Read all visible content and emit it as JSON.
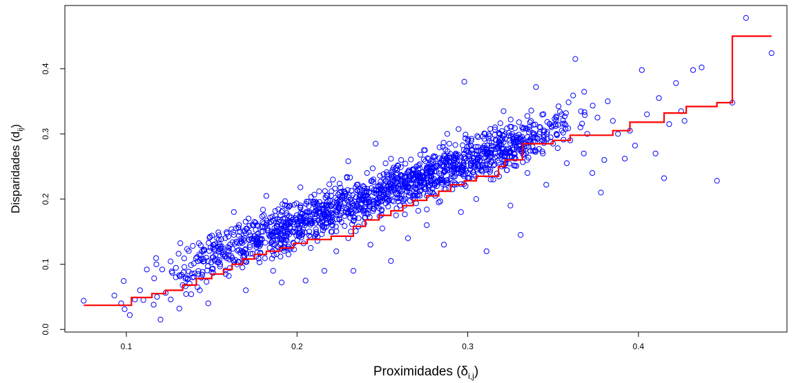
{
  "chart_data": {
    "type": "scatter",
    "title": "",
    "xlabel": {
      "main": "Proximidades (δ",
      "sub": "i,j",
      "close": ")"
    },
    "ylabel": {
      "main": "Disparidades (d",
      "sub": "ij",
      "close": ")"
    },
    "xlim": [
      0.064,
      0.487
    ],
    "ylim": [
      -0.004,
      0.497
    ],
    "xticks": [
      0.1,
      0.2,
      0.3,
      0.4
    ],
    "xtick_labels": [
      "0.1",
      "0.2",
      "0.3",
      "0.4"
    ],
    "yticks": [
      0.0,
      0.1,
      0.2,
      0.3,
      0.4
    ],
    "ytick_labels": [
      "0.0",
      "0.1",
      "0.2",
      "0.3",
      "0.4"
    ],
    "grid": false,
    "legend": "none",
    "series": [
      {
        "kind": "points",
        "marker": "open-circle",
        "color": "#0000ff",
        "sample_points": [
          [
            0.075,
            0.044
          ],
          [
            0.093,
            0.052
          ],
          [
            0.097,
            0.04
          ],
          [
            0.099,
            0.031
          ],
          [
            0.102,
            0.022
          ],
          [
            0.105,
            0.046
          ],
          [
            0.108,
            0.06
          ],
          [
            0.11,
            0.045
          ],
          [
            0.112,
            0.092
          ],
          [
            0.116,
            0.038
          ],
          [
            0.118,
            0.05
          ],
          [
            0.12,
            0.015
          ],
          [
            0.121,
            0.092
          ],
          [
            0.123,
            0.056
          ],
          [
            0.126,
            0.046
          ],
          [
            0.129,
            0.08
          ],
          [
            0.131,
            0.032
          ],
          [
            0.133,
            0.068
          ],
          [
            0.136,
            0.078
          ],
          [
            0.138,
            0.054
          ],
          [
            0.14,
            0.086
          ],
          [
            0.143,
            0.06
          ],
          [
            0.145,
            0.108
          ],
          [
            0.147,
            0.073
          ],
          [
            0.148,
            0.04
          ],
          [
            0.15,
            0.088
          ],
          [
            0.152,
            0.12
          ],
          [
            0.155,
            0.1
          ],
          [
            0.158,
            0.14
          ],
          [
            0.16,
            0.082
          ],
          [
            0.162,
            0.11
          ],
          [
            0.163,
            0.18
          ],
          [
            0.166,
            0.122
          ],
          [
            0.168,
            0.095
          ],
          [
            0.17,
            0.06
          ],
          [
            0.172,
            0.138
          ],
          [
            0.175,
            0.165
          ],
          [
            0.176,
            0.112
          ],
          [
            0.178,
            0.103
          ],
          [
            0.18,
            0.15
          ],
          [
            0.182,
            0.205
          ],
          [
            0.184,
            0.125
          ],
          [
            0.186,
            0.09
          ],
          [
            0.188,
            0.158
          ],
          [
            0.19,
            0.14
          ],
          [
            0.191,
            0.072
          ],
          [
            0.193,
            0.17
          ],
          [
            0.195,
            0.115
          ],
          [
            0.196,
            0.19
          ],
          [
            0.198,
            0.132
          ],
          [
            0.2,
            0.16
          ],
          [
            0.202,
            0.218
          ],
          [
            0.203,
            0.15
          ],
          [
            0.205,
            0.075
          ],
          [
            0.206,
            0.18
          ],
          [
            0.208,
            0.125
          ],
          [
            0.21,
            0.195
          ],
          [
            0.212,
            0.142
          ],
          [
            0.213,
            0.212
          ],
          [
            0.215,
            0.165
          ],
          [
            0.216,
            0.09
          ],
          [
            0.218,
            0.178
          ],
          [
            0.22,
            0.15
          ],
          [
            0.221,
            0.23
          ],
          [
            0.223,
            0.12
          ],
          [
            0.225,
            0.19
          ],
          [
            0.226,
            0.165
          ],
          [
            0.228,
            0.208
          ],
          [
            0.23,
            0.14
          ],
          [
            0.23,
            0.258
          ],
          [
            0.232,
            0.185
          ],
          [
            0.233,
            0.09
          ],
          [
            0.235,
            0.222
          ],
          [
            0.236,
            0.158
          ],
          [
            0.238,
            0.2
          ],
          [
            0.24,
            0.172
          ],
          [
            0.241,
            0.24
          ],
          [
            0.243,
            0.13
          ],
          [
            0.245,
            0.21
          ],
          [
            0.246,
            0.285
          ],
          [
            0.248,
            0.186
          ],
          [
            0.25,
            0.155
          ],
          [
            0.251,
            0.23
          ],
          [
            0.253,
            0.2
          ],
          [
            0.255,
            0.105
          ],
          [
            0.256,
            0.245
          ],
          [
            0.258,
            0.175
          ],
          [
            0.26,
            0.215
          ],
          [
            0.261,
            0.26
          ],
          [
            0.263,
            0.19
          ],
          [
            0.265,
            0.14
          ],
          [
            0.266,
            0.235
          ],
          [
            0.268,
            0.205
          ],
          [
            0.27,
            0.25
          ],
          [
            0.271,
            0.182
          ],
          [
            0.273,
            0.22
          ],
          [
            0.275,
            0.275
          ],
          [
            0.276,
            0.16
          ],
          [
            0.278,
            0.24
          ],
          [
            0.28,
            0.208
          ],
          [
            0.281,
            0.265
          ],
          [
            0.283,
            0.195
          ],
          [
            0.285,
            0.23
          ],
          [
            0.286,
            0.13
          ],
          [
            0.288,
            0.3
          ],
          [
            0.29,
            0.252
          ],
          [
            0.291,
            0.215
          ],
          [
            0.293,
            0.27
          ],
          [
            0.295,
            0.24
          ],
          [
            0.296,
            0.18
          ],
          [
            0.298,
            0.38
          ],
          [
            0.3,
            0.29
          ],
          [
            0.301,
            0.232
          ],
          [
            0.303,
            0.258
          ],
          [
            0.305,
            0.2
          ],
          [
            0.306,
            0.28
          ],
          [
            0.308,
            0.245
          ],
          [
            0.31,
            0.3
          ],
          [
            0.311,
            0.12
          ],
          [
            0.313,
            0.265
          ],
          [
            0.315,
            0.23
          ],
          [
            0.316,
            0.31
          ],
          [
            0.318,
            0.28
          ],
          [
            0.32,
            0.25
          ],
          [
            0.321,
            0.335
          ],
          [
            0.323,
            0.27
          ],
          [
            0.325,
            0.19
          ],
          [
            0.326,
            0.3
          ],
          [
            0.328,
            0.262
          ],
          [
            0.33,
            0.318
          ],
          [
            0.331,
            0.145
          ],
          [
            0.333,
            0.285
          ],
          [
            0.335,
            0.24
          ],
          [
            0.337,
            0.32
          ],
          [
            0.34,
            0.372
          ],
          [
            0.342,
            0.3
          ],
          [
            0.344,
            0.27
          ],
          [
            0.346,
            0.222
          ],
          [
            0.348,
            0.315
          ],
          [
            0.35,
            0.285
          ],
          [
            0.352,
            0.3
          ],
          [
            0.355,
            0.33
          ],
          [
            0.358,
            0.255
          ],
          [
            0.36,
            0.29
          ],
          [
            0.363,
            0.415
          ],
          [
            0.366,
            0.31
          ],
          [
            0.368,
            0.27
          ],
          [
            0.37,
            0.3
          ],
          [
            0.373,
            0.24
          ],
          [
            0.376,
            0.325
          ],
          [
            0.378,
            0.21
          ],
          [
            0.38,
            0.26
          ],
          [
            0.382,
            0.35
          ],
          [
            0.385,
            0.32
          ],
          [
            0.388,
            0.3
          ],
          [
            0.392,
            0.262
          ],
          [
            0.395,
            0.305
          ],
          [
            0.398,
            0.282
          ],
          [
            0.402,
            0.398
          ],
          [
            0.405,
            0.33
          ],
          [
            0.41,
            0.27
          ],
          [
            0.412,
            0.355
          ],
          [
            0.415,
            0.232
          ],
          [
            0.418,
            0.315
          ],
          [
            0.422,
            0.378
          ],
          [
            0.425,
            0.335
          ],
          [
            0.427,
            0.32
          ],
          [
            0.432,
            0.398
          ],
          [
            0.437,
            0.402
          ],
          [
            0.446,
            0.228
          ],
          [
            0.455,
            0.348
          ],
          [
            0.463,
            0.478
          ],
          [
            0.478,
            0.424
          ]
        ]
      },
      {
        "kind": "step",
        "color": "#ff0000",
        "step_points": [
          [
            0.075,
            0.037
          ],
          [
            0.103,
            0.037
          ],
          [
            0.103,
            0.049
          ],
          [
            0.115,
            0.049
          ],
          [
            0.115,
            0.055
          ],
          [
            0.123,
            0.055
          ],
          [
            0.123,
            0.06
          ],
          [
            0.133,
            0.06
          ],
          [
            0.133,
            0.068
          ],
          [
            0.141,
            0.068
          ],
          [
            0.141,
            0.078
          ],
          [
            0.15,
            0.078
          ],
          [
            0.15,
            0.085
          ],
          [
            0.157,
            0.085
          ],
          [
            0.157,
            0.092
          ],
          [
            0.162,
            0.092
          ],
          [
            0.162,
            0.1
          ],
          [
            0.168,
            0.1
          ],
          [
            0.168,
            0.108
          ],
          [
            0.175,
            0.108
          ],
          [
            0.175,
            0.115
          ],
          [
            0.182,
            0.115
          ],
          [
            0.182,
            0.12
          ],
          [
            0.19,
            0.12
          ],
          [
            0.19,
            0.125
          ],
          [
            0.198,
            0.125
          ],
          [
            0.198,
            0.132
          ],
          [
            0.206,
            0.132
          ],
          [
            0.206,
            0.138
          ],
          [
            0.22,
            0.138
          ],
          [
            0.22,
            0.143
          ],
          [
            0.233,
            0.143
          ],
          [
            0.233,
            0.158
          ],
          [
            0.24,
            0.158
          ],
          [
            0.24,
            0.168
          ],
          [
            0.248,
            0.168
          ],
          [
            0.248,
            0.175
          ],
          [
            0.255,
            0.175
          ],
          [
            0.255,
            0.182
          ],
          [
            0.262,
            0.182
          ],
          [
            0.262,
            0.19
          ],
          [
            0.268,
            0.19
          ],
          [
            0.268,
            0.198
          ],
          [
            0.276,
            0.198
          ],
          [
            0.276,
            0.205
          ],
          [
            0.283,
            0.205
          ],
          [
            0.283,
            0.212
          ],
          [
            0.29,
            0.212
          ],
          [
            0.29,
            0.222
          ],
          [
            0.298,
            0.222
          ],
          [
            0.298,
            0.228
          ],
          [
            0.305,
            0.228
          ],
          [
            0.305,
            0.235
          ],
          [
            0.318,
            0.235
          ],
          [
            0.318,
            0.25
          ],
          [
            0.322,
            0.25
          ],
          [
            0.322,
            0.26
          ],
          [
            0.332,
            0.26
          ],
          [
            0.332,
            0.285
          ],
          [
            0.35,
            0.285
          ],
          [
            0.35,
            0.29
          ],
          [
            0.36,
            0.29
          ],
          [
            0.36,
            0.298
          ],
          [
            0.385,
            0.298
          ],
          [
            0.385,
            0.305
          ],
          [
            0.395,
            0.305
          ],
          [
            0.395,
            0.318
          ],
          [
            0.415,
            0.318
          ],
          [
            0.415,
            0.332
          ],
          [
            0.428,
            0.332
          ],
          [
            0.428,
            0.342
          ],
          [
            0.446,
            0.342
          ],
          [
            0.446,
            0.348
          ],
          [
            0.455,
            0.348
          ],
          [
            0.455,
            0.45
          ],
          [
            0.478,
            0.45
          ]
        ]
      }
    ]
  }
}
